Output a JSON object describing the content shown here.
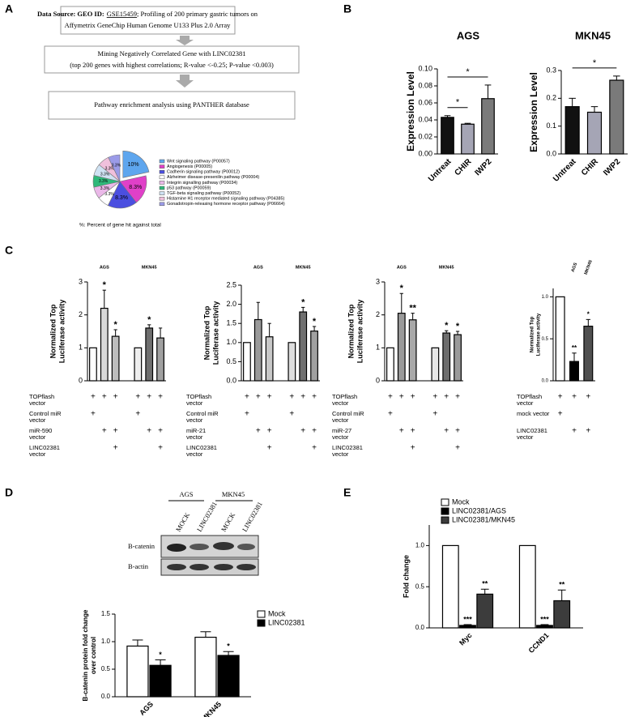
{
  "panel_labels": [
    "A",
    "B",
    "C",
    "D",
    "E"
  ],
  "flowchart": {
    "box1": {
      "bold": "Data Source: GEO ID:",
      "link": "GSE15459",
      "rest": "; Profiling of 200 primary gastric tumors on",
      "line2": "Affymetrix GeneChip Human Genome U133 Plus 2.0 Array"
    },
    "box2": {
      "line1": "Mining  Negatively Correlated Gene with LINC02381",
      "line2": "(top 200 genes with highest correlations; R-value <-0.25; P-value <0.003)"
    },
    "box3": {
      "line1": "Pathway enrichment analysis using PANTHER database"
    }
  },
  "western_blot": {
    "groups": [
      "AGS",
      "MKN45"
    ],
    "lanes": [
      "MOCK",
      "LINC02381",
      "MOCK",
      "LINC02381"
    ],
    "rows": [
      "B-catenin",
      "B-actin"
    ]
  },
  "chart_data": [
    {
      "type": "pie",
      "categories": [
        "Wnt signaling pathway (P00057)",
        "Angiogenesis (P00005)",
        "Cadherin signaling pathway (P00012)",
        "Alzheimer disease-presenilin pathway (P00004)",
        "Integrin signalling pathway (P00034)",
        "p53 pathway (P00059)",
        "TGF-beta signaling pathway (P00052)",
        "Histamine H1 receptor mediated signaling pathway (P04385)",
        "Gonadotropin-releasing hormone receptor pathway (P06664)"
      ],
      "values": [
        10,
        8.3,
        8.3,
        3.3,
        3.3,
        3.3,
        3.3,
        3.3,
        3.3
      ],
      "value_labels": [
        "10%",
        "8.3%",
        "8.3%",
        "3.3%",
        "3.3%",
        "3.3%",
        "3.3%",
        "3.3%",
        "3.3%"
      ],
      "colors": [
        "#5ea6ee",
        "#e040c8",
        "#4b4fe0",
        "#ffffff",
        "#eab8e8",
        "#2fb87a",
        "#cfe2f3",
        "#f0c0dc",
        "#9b9be8"
      ],
      "note": "%: Percent of gene hit against total"
    },
    {
      "type": "bar",
      "title": "AGS",
      "ylabel": [
        "Expression Level"
      ],
      "categories": [
        "Untreat",
        "CHIR",
        "IWP2"
      ],
      "values": [
        0.043,
        0.035,
        0.065
      ],
      "errors": [
        0.002,
        0.001,
        0.016
      ],
      "colors": [
        "#111111",
        "#a5a5b5",
        "#7a7a7a"
      ],
      "ylim": [
        0,
        0.1
      ],
      "yticks": [
        {
          "value": 0,
          "label": "0.00"
        },
        {
          "value": 0.02,
          "label": "0.02"
        },
        {
          "value": 0.04,
          "label": "0.04"
        },
        {
          "value": 0.06,
          "label": "0.06"
        },
        {
          "value": 0.08,
          "label": "0.08"
        },
        {
          "value": 0.1,
          "label": "0.10"
        }
      ],
      "brackets": [
        {
          "text": "*",
          "from": 0,
          "to": 1
        },
        {
          "text": "*",
          "from": 0,
          "to": 2
        }
      ]
    },
    {
      "type": "bar",
      "title": "MKN45",
      "ylabel": [
        "Expression Level"
      ],
      "categories": [
        "Untreat",
        "CHIR",
        "IWP2"
      ],
      "values": [
        0.17,
        0.15,
        0.265
      ],
      "errors": [
        0.03,
        0.02,
        0.015
      ],
      "colors": [
        "#111111",
        "#a5a5b5",
        "#7a7a7a"
      ],
      "ylim": [
        0,
        0.3
      ],
      "yticks": [
        {
          "value": 0,
          "label": "0.0"
        },
        {
          "value": 0.1,
          "label": "0.1"
        },
        {
          "value": 0.2,
          "label": "0.2"
        },
        {
          "value": 0.3,
          "label": "0.3"
        }
      ],
      "brackets": [
        {
          "text": "*",
          "from": 0,
          "to": 2
        }
      ]
    },
    {
      "type": "bar",
      "ylabel": [
        "Normalized Top",
        "Luciferase activity"
      ],
      "group_labels": [
        "AGS",
        "MKN45"
      ],
      "values": [
        1,
        2.2,
        1.35,
        1,
        1.6,
        1.3
      ],
      "errors": [
        null,
        0.55,
        0.2,
        null,
        0.1,
        0.3
      ],
      "stars": [
        null,
        "*",
        "*",
        null,
        "*",
        null
      ],
      "colors": [
        "#ffffff",
        "#d9d9d9",
        "#bdbdbd",
        "#eeeeee",
        "#6e6e6e",
        "#a0a0a0"
      ],
      "ylim": [
        0,
        3
      ],
      "yticks": [
        0,
        1,
        2,
        3
      ],
      "table": [
        {
          "label": [
            "TOPflash",
            "vector"
          ],
          "marks": [
            "+",
            "+",
            "+",
            "+",
            "+",
            "+"
          ]
        },
        {
          "label": [
            "Control miR",
            "vector"
          ],
          "marks": [
            "+",
            null,
            null,
            "+",
            null,
            null
          ]
        },
        {
          "label": [
            "miR-590",
            "vector"
          ],
          "marks": [
            null,
            "+",
            "+",
            null,
            "+",
            "+"
          ]
        },
        {
          "label": [
            "LINC02381",
            "vector"
          ],
          "marks": [
            null,
            null,
            "+",
            null,
            null,
            "+"
          ]
        }
      ]
    },
    {
      "type": "bar",
      "ylabel": [
        "Normalized Top",
        "Luciferase activity"
      ],
      "group_labels": [
        "AGS",
        "MKN45"
      ],
      "values": [
        1,
        1.6,
        1.15,
        1,
        1.8,
        1.3
      ],
      "errors": [
        null,
        0.45,
        0.35,
        null,
        0.12,
        0.12
      ],
      "stars": [
        null,
        null,
        null,
        null,
        "*",
        "*"
      ],
      "colors": [
        "#ffffff",
        "#9a9a9a",
        "#c8c8c8",
        "#dddddd",
        "#707070",
        "#a0a0a0"
      ],
      "ylim": [
        0,
        2.5
      ],
      "yticks": [
        {
          "value": 0,
          "label": "0.0"
        },
        {
          "value": 0.5,
          "label": "0.5"
        },
        {
          "value": 1,
          "label": "1.0"
        },
        {
          "value": 1.5,
          "label": "1.5"
        },
        {
          "value": 2,
          "label": "2.0"
        },
        {
          "value": 2.5,
          "label": "2.5"
        }
      ],
      "table": [
        {
          "label": [
            "TOPflash",
            "vector"
          ],
          "marks": [
            "+",
            "+",
            "+",
            "+",
            "+",
            "+"
          ]
        },
        {
          "label": [
            "Control miR",
            "vector"
          ],
          "marks": [
            "+",
            null,
            null,
            "+",
            null,
            null
          ]
        },
        {
          "label": [
            "miR-21",
            "vector"
          ],
          "marks": [
            null,
            "+",
            "+",
            null,
            "+",
            "+"
          ]
        },
        {
          "label": [
            "LINC02381",
            "vector"
          ],
          "marks": [
            null,
            null,
            "+",
            null,
            null,
            "+"
          ]
        }
      ]
    },
    {
      "type": "bar",
      "ylabel": [
        "Normalized Top",
        "Luciferase activity"
      ],
      "group_labels": [
        "AGS",
        "MKN45"
      ],
      "values": [
        1,
        2.05,
        1.85,
        1,
        1.45,
        1.4
      ],
      "errors": [
        null,
        0.6,
        0.2,
        null,
        0.07,
        0.1
      ],
      "stars": [
        null,
        "*",
        "**",
        null,
        "*",
        "*"
      ],
      "colors": [
        "#ffffff",
        "#9a9a9a",
        "#a8a8a8",
        "#e6e6e6",
        "#6e6e6e",
        "#9a9a9a"
      ],
      "ylim": [
        0,
        3
      ],
      "yticks": [
        0,
        1,
        2,
        3
      ],
      "table": [
        {
          "label": [
            "TOPflash",
            "vector"
          ],
          "marks": [
            "+",
            "+",
            "+",
            "+",
            "+",
            "+"
          ]
        },
        {
          "label": [
            "Control miR",
            "vector"
          ],
          "marks": [
            "+",
            null,
            null,
            "+",
            null,
            null
          ]
        },
        {
          "label": [
            "miR-27",
            "vector"
          ],
          "marks": [
            null,
            "+",
            "+",
            null,
            "+",
            "+"
          ]
        },
        {
          "label": [
            "LINC02381",
            "vector"
          ],
          "marks": [
            null,
            null,
            "+",
            null,
            null,
            "+"
          ]
        }
      ]
    },
    {
      "type": "bar",
      "ylabel": [
        "Normalized Top",
        "Luciferase activity"
      ],
      "group_labels": [
        "AGS",
        "MKN45"
      ],
      "values": [
        1,
        0.23,
        0.65
      ],
      "errors": [
        null,
        0.1,
        0.08
      ],
      "stars": [
        null,
        "**",
        "*"
      ],
      "colors": [
        "#ffffff",
        "#000000",
        "#505050"
      ],
      "ylim": [
        0,
        1.1
      ],
      "yticks": [
        {
          "value": 0,
          "label": "0.0"
        },
        {
          "value": 0.5,
          "label": "0.5"
        },
        {
          "value": 1,
          "label": "1.0"
        }
      ],
      "table": [
        {
          "label": [
            "TOPflash",
            "vector"
          ],
          "marks": [
            "+",
            "+",
            "+"
          ]
        },
        {
          "label": [
            "mock vector"
          ],
          "marks": [
            "+",
            null,
            null
          ]
        },
        {
          "label": [
            "LINC02381",
            "vector"
          ],
          "marks": [
            null,
            "+",
            "+"
          ]
        }
      ]
    },
    {
      "type": "grouped_bar",
      "ylabel": [
        "B-catenin protein fold change",
        "over control"
      ],
      "categories": [
        "AGS",
        "MKN45"
      ],
      "series": [
        {
          "name": "Mock",
          "color": "#ffffff",
          "values": [
            0.92,
            1.08
          ],
          "errors": [
            0.11,
            0.1
          ],
          "stars": [
            null,
            null
          ]
        },
        {
          "name": "LINC02381",
          "color": "#000000",
          "values": [
            0.57,
            0.75
          ],
          "errors": [
            0.1,
            0.07
          ],
          "stars": [
            "*",
            "*"
          ]
        }
      ],
      "ylim": [
        0,
        1.5
      ],
      "yticks": [
        {
          "value": 0,
          "label": "0.0"
        },
        {
          "value": 0.5,
          "label": "0.5"
        },
        {
          "value": 1,
          "label": "1.0"
        },
        {
          "value": 1.5,
          "label": "1.5"
        }
      ]
    },
    {
      "type": "grouped_bar",
      "ylabel": [
        "Fold change"
      ],
      "categories": [
        "Myc",
        "CCND1"
      ],
      "series": [
        {
          "name": "Mock",
          "color": "#ffffff",
          "values": [
            1,
            1
          ],
          "errors": [
            null,
            null
          ],
          "stars": [
            null,
            null
          ]
        },
        {
          "name": "LINC02381/AGS",
          "color": "#000000",
          "values": [
            0.03,
            0.03
          ],
          "errors": [
            0.01,
            0.01
          ],
          "stars": [
            "***",
            "***"
          ]
        },
        {
          "name": "LINC02381/MKN45",
          "color": "#3c3c3c",
          "values": [
            0.41,
            0.33
          ],
          "errors": [
            0.06,
            0.13
          ],
          "stars": [
            "**",
            "**"
          ]
        }
      ],
      "ylim": [
        0,
        1.25
      ],
      "yticks": [
        {
          "value": 0,
          "label": "0.0"
        },
        {
          "value": 0.5,
          "label": "0.5"
        },
        {
          "value": 1,
          "label": "1.0"
        }
      ]
    }
  ]
}
